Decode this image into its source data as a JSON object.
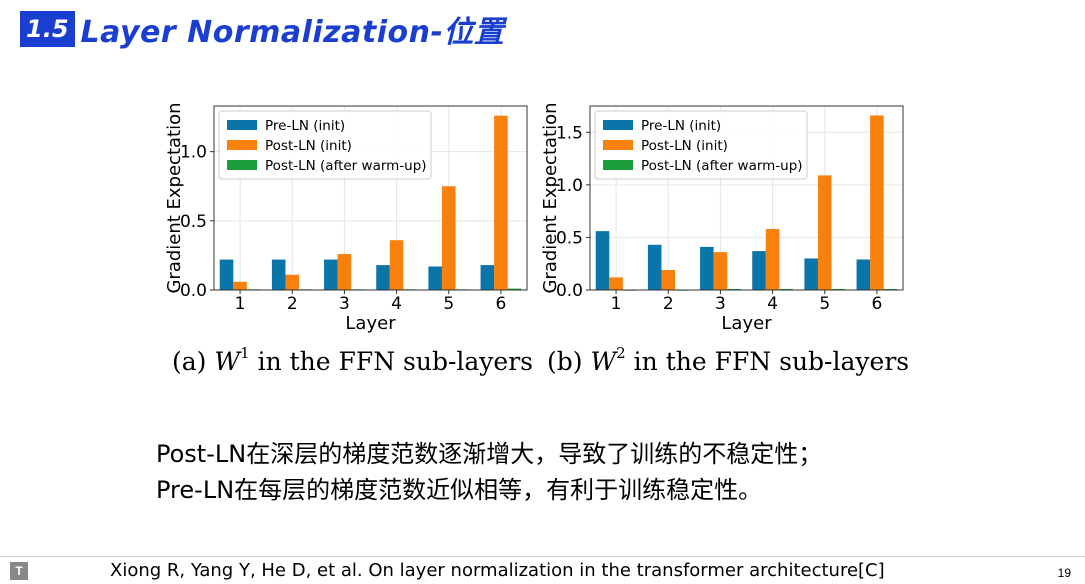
{
  "slide": {
    "section_number": "1.5",
    "title": "Layer Normalization-位置",
    "body_lines": [
      "Post-LN在深层的梯度范数逐渐增大，导致了训练的不稳定性；",
      "Pre-LN在每层的梯度范数近似相等，有利于训练稳定性。"
    ],
    "reference": "Xiong R, Yang Y, He D, et al. On layer normalization in the transformer architecture[C]",
    "page_number": "19"
  },
  "captions": [
    {
      "prefix": "(a)",
      "symbol": "W",
      "superscript": "1",
      "suffix": "in the FFN sub-layers"
    },
    {
      "prefix": "(b)",
      "symbol": "W",
      "superscript": "2",
      "suffix": "in the FFN sub-layers"
    }
  ],
  "colors": {
    "pre_ln_init": "#0a75a8",
    "post_ln_init": "#f7810c",
    "post_ln_warmup": "#1b9e3a",
    "title_blue": "#1a3fd0"
  },
  "chart_data": [
    {
      "type": "bar",
      "xlabel": "Layer",
      "ylabel": "Gradient Expectation",
      "categories": [
        "1",
        "2",
        "3",
        "4",
        "5",
        "6"
      ],
      "yticks": [
        "0.0",
        "0.5",
        "1.0"
      ],
      "ytick_values": [
        0.0,
        0.5,
        1.0
      ],
      "ylim": [
        0,
        1.33
      ],
      "grid": true,
      "legend_position": "top-left",
      "series": [
        {
          "name": "Pre-LN (init)",
          "values": [
            0.22,
            0.22,
            0.22,
            0.18,
            0.17,
            0.18
          ]
        },
        {
          "name": "Post-LN (init)",
          "values": [
            0.06,
            0.11,
            0.26,
            0.36,
            0.75,
            1.26
          ]
        },
        {
          "name": "Post-LN (after warm-up)",
          "values": [
            0.005,
            0.005,
            0.005,
            0.005,
            0.005,
            0.01
          ]
        }
      ]
    },
    {
      "type": "bar",
      "xlabel": "Layer",
      "ylabel": "Gradient Expectation",
      "categories": [
        "1",
        "2",
        "3",
        "4",
        "5",
        "6"
      ],
      "yticks": [
        "0.0",
        "0.5",
        "1.0",
        "1.5"
      ],
      "ytick_values": [
        0.0,
        0.5,
        1.0,
        1.5
      ],
      "ylim": [
        0,
        1.75
      ],
      "grid": true,
      "legend_position": "top-left",
      "series": [
        {
          "name": "Pre-LN (init)",
          "values": [
            0.56,
            0.43,
            0.41,
            0.37,
            0.3,
            0.29
          ]
        },
        {
          "name": "Post-LN (init)",
          "values": [
            0.12,
            0.19,
            0.36,
            0.58,
            1.09,
            1.66
          ]
        },
        {
          "name": "Post-LN (after warm-up)",
          "values": [
            0.005,
            0.005,
            0.01,
            0.01,
            0.01,
            0.01
          ]
        }
      ]
    }
  ]
}
